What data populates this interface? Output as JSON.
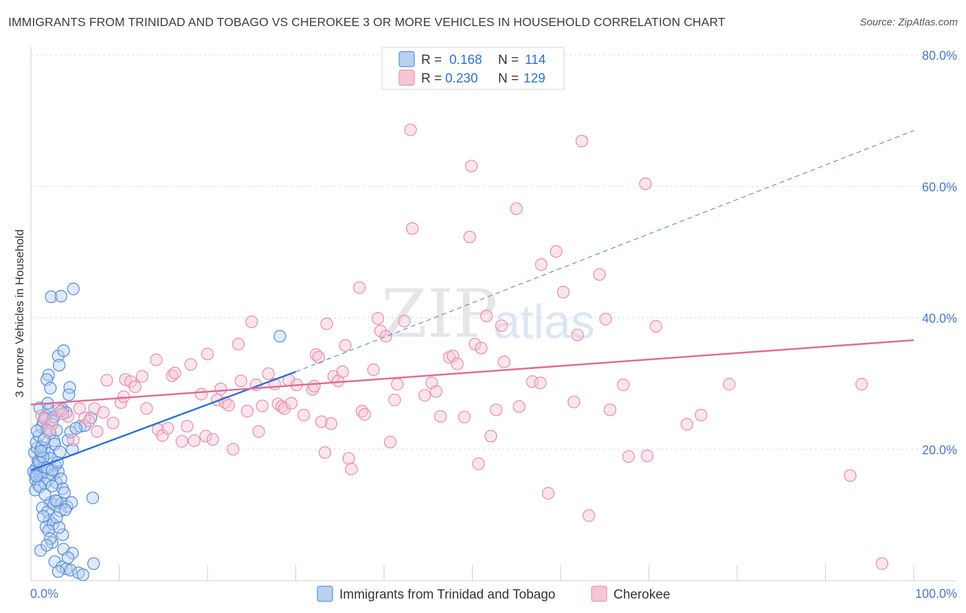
{
  "title": "IMMIGRANTS FROM TRINIDAD AND TOBAGO VS CHEROKEE 3 OR MORE VEHICLES IN HOUSEHOLD CORRELATION CHART",
  "source": "Source: ZipAtlas.com",
  "watermark": {
    "part1": "ZIP",
    "part2": "atlas"
  },
  "colors": {
    "blue": "#5b8fd9",
    "blue_fill": "#b8d0f2",
    "blue_line": "#2c6fd1",
    "pink": "#e792ad",
    "pink_fill": "#f7c6d6",
    "pink_line": "#e06b96",
    "grid": "#d9d9d9",
    "axis_text": "#4a78c8"
  },
  "legend": {
    "r_label": "R =",
    "n_label": "N =",
    "rows": [
      {
        "r": "0.168",
        "n": "114"
      },
      {
        "r": "0.230",
        "n": "129"
      }
    ]
  },
  "chart_data": {
    "type": "scatter",
    "title": "IMMIGRANTS FROM TRINIDAD AND TOBAGO VS CHEROKEE 3 OR MORE VEHICLES IN HOUSEHOLD CORRELATION CHART",
    "xlabel": "",
    "ylabel": "3 or more Vehicles in Household",
    "xlim": [
      0,
      100
    ],
    "ylim": [
      0,
      80
    ],
    "x_tick_labels": [
      "0.0%",
      "100.0%"
    ],
    "y_ticks": [
      20,
      40,
      60,
      80
    ],
    "y_tick_labels": [
      "20.0%",
      "40.0%",
      "60.0%",
      "80.0%"
    ],
    "grid": true,
    "legend_position": "top-center",
    "series": [
      {
        "name": "Immigrants from Trinidad and Tobago",
        "color": "#5b8fd9",
        "trend": {
          "x0": 0,
          "y0": 16.8,
          "x1": 30,
          "y1": 31.8,
          "dashed_to_x": 100,
          "dashed_to_y": 68.5
        },
        "points": [
          [
            0.5,
            16.2
          ],
          [
            0.6,
            17.1
          ],
          [
            0.8,
            18.3
          ],
          [
            0.4,
            19.5
          ],
          [
            0.7,
            20.2
          ],
          [
            0.9,
            16.9
          ],
          [
            1.0,
            17.8
          ],
          [
            1.2,
            19.0
          ],
          [
            0.5,
            15.4
          ],
          [
            0.8,
            14.6
          ],
          [
            1.1,
            15.9
          ],
          [
            1.3,
            16.4
          ],
          [
            1.5,
            17.3
          ],
          [
            0.6,
            21.0
          ],
          [
            0.9,
            22.1
          ],
          [
            1.2,
            23.4
          ],
          [
            1.4,
            24.2
          ],
          [
            1.7,
            25.1
          ],
          [
            1.0,
            26.3
          ],
          [
            2.0,
            26.0
          ],
          [
            1.5,
            24.8
          ],
          [
            2.4,
            24.3
          ],
          [
            1.8,
            23.0
          ],
          [
            2.2,
            22.4
          ],
          [
            2.6,
            21.3
          ],
          [
            1.6,
            20.2
          ],
          [
            1.9,
            19.4
          ],
          [
            2.3,
            18.6
          ],
          [
            2.8,
            17.5
          ],
          [
            3.1,
            16.6
          ],
          [
            2.5,
            16.1
          ],
          [
            2.0,
            15.4
          ],
          [
            1.6,
            14.8
          ],
          [
            2.9,
            14.9
          ],
          [
            3.4,
            15.5
          ],
          [
            3.6,
            14.0
          ],
          [
            3.8,
            13.4
          ],
          [
            2.2,
            11.9
          ],
          [
            1.3,
            11.1
          ],
          [
            1.9,
            10.5
          ],
          [
            2.6,
            11.6
          ],
          [
            3.0,
            12.1
          ],
          [
            3.5,
            11.8
          ],
          [
            4.1,
            11.3
          ],
          [
            3.3,
            10.6
          ],
          [
            2.1,
            9.2
          ],
          [
            1.7,
            8.2
          ],
          [
            2.5,
            8.6
          ],
          [
            2.0,
            7.6
          ],
          [
            3.6,
            7.0
          ],
          [
            2.4,
            5.8
          ],
          [
            1.1,
            4.6
          ],
          [
            3.7,
            4.8
          ],
          [
            4.7,
            4.2
          ],
          [
            2.7,
            2.9
          ],
          [
            3.5,
            2.1
          ],
          [
            4.0,
            1.8
          ],
          [
            4.5,
            1.6
          ],
          [
            5.4,
            1.2
          ],
          [
            7.1,
            2.6
          ],
          [
            3.1,
            34.2
          ],
          [
            3.7,
            35.0
          ],
          [
            2.0,
            31.3
          ],
          [
            1.8,
            30.6
          ],
          [
            3.2,
            32.8
          ],
          [
            4.4,
            29.4
          ],
          [
            4.3,
            28.3
          ],
          [
            2.2,
            29.3
          ],
          [
            3.6,
            26.1
          ],
          [
            4.0,
            25.6
          ],
          [
            5.6,
            23.5
          ],
          [
            6.1,
            23.6
          ],
          [
            6.8,
            24.8
          ],
          [
            4.2,
            21.4
          ],
          [
            4.5,
            22.6
          ],
          [
            2.3,
            43.2
          ],
          [
            3.4,
            43.3
          ],
          [
            4.8,
            44.4
          ],
          [
            7.0,
            12.6
          ],
          [
            28.2,
            37.2
          ],
          [
            0.3,
            16.6
          ],
          [
            0.9,
            18.1
          ],
          [
            1.4,
            18.8
          ],
          [
            1.2,
            20.3
          ],
          [
            0.7,
            22.8
          ],
          [
            1.5,
            21.5
          ],
          [
            2.7,
            20.8
          ],
          [
            3.3,
            19.6
          ],
          [
            1.8,
            17.2
          ],
          [
            2.4,
            16.8
          ],
          [
            3.0,
            18.0
          ],
          [
            0.5,
            13.8
          ],
          [
            1.0,
            14.3
          ],
          [
            1.6,
            13.1
          ],
          [
            2.8,
            12.2
          ],
          [
            4.6,
            11.9
          ],
          [
            3.9,
            10.8
          ],
          [
            2.9,
            9.6
          ],
          [
            1.4,
            9.8
          ],
          [
            3.2,
            8.1
          ],
          [
            2.2,
            6.4
          ],
          [
            1.8,
            5.4
          ],
          [
            4.2,
            3.5
          ],
          [
            3.1,
            1.4
          ],
          [
            5.9,
            0.9
          ],
          [
            2.6,
            24.9
          ],
          [
            1.9,
            27.0
          ],
          [
            3.4,
            25.8
          ],
          [
            5.1,
            23.2
          ],
          [
            2.9,
            22.9
          ],
          [
            4.7,
            20.0
          ],
          [
            1.1,
            19.7
          ],
          [
            0.6,
            15.9
          ],
          [
            2.4,
            14.4
          ]
        ]
      },
      {
        "name": "Cherokee",
        "color": "#e792ad",
        "trend": {
          "x0": 0,
          "y0": 26.8,
          "x1": 100,
          "y1": 36.6
        },
        "points": [
          [
            1.2,
            25.1
          ],
          [
            1.6,
            24.6
          ],
          [
            2.4,
            23.8
          ],
          [
            3.1,
            26.0
          ],
          [
            4.2,
            25.0
          ],
          [
            4.8,
            21.4
          ],
          [
            5.5,
            26.2
          ],
          [
            6.1,
            24.8
          ],
          [
            7.2,
            26.2
          ],
          [
            7.5,
            22.7
          ],
          [
            8.2,
            25.6
          ],
          [
            8.6,
            30.5
          ],
          [
            9.3,
            24.0
          ],
          [
            10.2,
            27.1
          ],
          [
            10.5,
            28.0
          ],
          [
            10.7,
            30.6
          ],
          [
            11.3,
            30.3
          ],
          [
            11.8,
            29.5
          ],
          [
            12.6,
            31.1
          ],
          [
            13.1,
            26.2
          ],
          [
            14.2,
            33.6
          ],
          [
            14.4,
            23.0
          ],
          [
            14.9,
            22.1
          ],
          [
            15.5,
            23.2
          ],
          [
            16.0,
            31.2
          ],
          [
            16.3,
            31.6
          ],
          [
            17.1,
            21.2
          ],
          [
            17.7,
            23.5
          ],
          [
            18.1,
            32.9
          ],
          [
            18.5,
            21.3
          ],
          [
            19.3,
            28.4
          ],
          [
            19.8,
            22.0
          ],
          [
            20.6,
            21.5
          ],
          [
            20.0,
            34.5
          ],
          [
            21.1,
            27.5
          ],
          [
            21.5,
            29.2
          ],
          [
            22.0,
            27.1
          ],
          [
            22.4,
            26.7
          ],
          [
            22.9,
            20.0
          ],
          [
            23.5,
            36.0
          ],
          [
            23.8,
            30.4
          ],
          [
            24.5,
            25.8
          ],
          [
            25.0,
            39.4
          ],
          [
            25.5,
            29.8
          ],
          [
            25.8,
            22.7
          ],
          [
            26.2,
            26.6
          ],
          [
            26.9,
            31.5
          ],
          [
            27.6,
            29.9
          ],
          [
            28.0,
            26.9
          ],
          [
            28.4,
            26.5
          ],
          [
            28.7,
            26.2
          ],
          [
            29.2,
            30.5
          ],
          [
            29.5,
            27.0
          ],
          [
            30.1,
            29.8
          ],
          [
            30.9,
            25.2
          ],
          [
            31.9,
            29.1
          ],
          [
            32.1,
            29.6
          ],
          [
            32.3,
            34.4
          ],
          [
            32.6,
            34.0
          ],
          [
            32.9,
            24.2
          ],
          [
            33.3,
            19.5
          ],
          [
            33.5,
            39.1
          ],
          [
            34.0,
            23.9
          ],
          [
            34.3,
            31.1
          ],
          [
            34.8,
            30.4
          ],
          [
            35.3,
            31.8
          ],
          [
            35.6,
            35.8
          ],
          [
            36.0,
            18.6
          ],
          [
            36.3,
            17.0
          ],
          [
            37.2,
            44.6
          ],
          [
            37.5,
            25.8
          ],
          [
            37.8,
            25.3
          ],
          [
            38.8,
            32.1
          ],
          [
            39.6,
            38.0
          ],
          [
            39.3,
            39.9
          ],
          [
            40.2,
            37.2
          ],
          [
            40.7,
            21.1
          ],
          [
            41.2,
            27.5
          ],
          [
            41.5,
            29.9
          ],
          [
            42.3,
            39.5
          ],
          [
            43.0,
            68.6
          ],
          [
            43.2,
            53.6
          ],
          [
            44.6,
            28.2
          ],
          [
            45.4,
            30.1
          ],
          [
            45.9,
            28.8
          ],
          [
            46.4,
            25.0
          ],
          [
            47.4,
            34.0
          ],
          [
            47.8,
            34.2
          ],
          [
            48.3,
            33.0
          ],
          [
            49.1,
            24.9
          ],
          [
            49.7,
            52.3
          ],
          [
            49.9,
            63.1
          ],
          [
            50.3,
            36.0
          ],
          [
            50.7,
            17.8
          ],
          [
            51.0,
            35.4
          ],
          [
            51.6,
            40.3
          ],
          [
            52.1,
            22.0
          ],
          [
            52.7,
            26.0
          ],
          [
            53.3,
            38.8
          ],
          [
            53.6,
            33.3
          ],
          [
            55.0,
            56.6
          ],
          [
            55.3,
            26.5
          ],
          [
            56.8,
            30.3
          ],
          [
            57.7,
            30.1
          ],
          [
            57.8,
            48.1
          ],
          [
            58.6,
            13.3
          ],
          [
            59.5,
            50.1
          ],
          [
            60.3,
            43.9
          ],
          [
            61.5,
            27.2
          ],
          [
            61.9,
            37.4
          ],
          [
            62.4,
            66.9
          ],
          [
            63.2,
            9.9
          ],
          [
            64.4,
            46.6
          ],
          [
            65.1,
            39.8
          ],
          [
            65.6,
            26.0
          ],
          [
            67.1,
            29.8
          ],
          [
            67.7,
            18.9
          ],
          [
            69.6,
            60.4
          ],
          [
            69.8,
            19.0
          ],
          [
            70.8,
            38.7
          ],
          [
            74.3,
            23.8
          ],
          [
            75.9,
            25.2
          ],
          [
            79.1,
            29.9
          ],
          [
            94.1,
            29.9
          ],
          [
            96.4,
            2.6
          ],
          [
            92.8,
            16.0
          ],
          [
            3.6,
            25.4
          ],
          [
            2.1,
            22.8
          ],
          [
            6.6,
            24.3
          ]
        ]
      }
    ]
  },
  "bottom_legend": [
    {
      "label": "Immigrants from Trinidad and Tobago"
    },
    {
      "label": "Cherokee"
    }
  ]
}
